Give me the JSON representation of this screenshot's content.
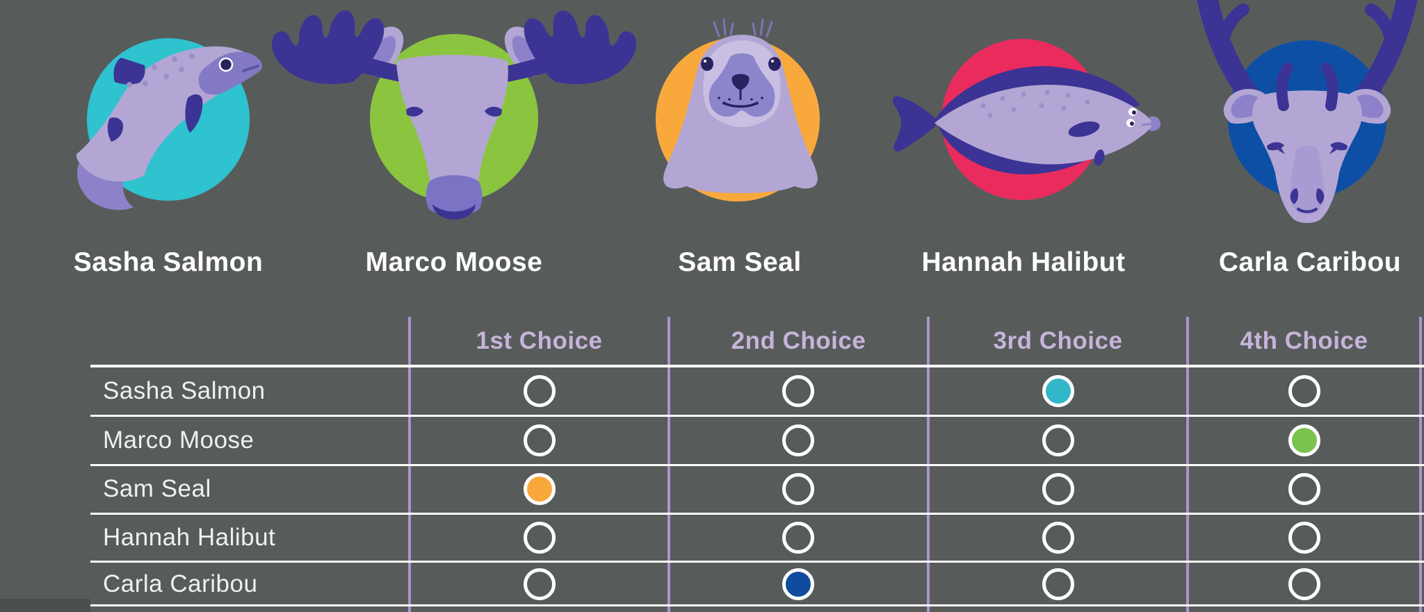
{
  "page": {
    "background_color": "#575c5b"
  },
  "characters": [
    {
      "name": "Sasha Salmon",
      "icon": "salmon-icon",
      "circle_color": "#2fc2cf"
    },
    {
      "name": "Marco Moose",
      "icon": "moose-icon",
      "circle_color": "#8bc540"
    },
    {
      "name": "Sam Seal",
      "icon": "seal-icon",
      "circle_color": "#f9a93c"
    },
    {
      "name": "Hannah Halibut",
      "icon": "halibut-icon",
      "circle_color": "#ea2b5d"
    },
    {
      "name": "Carla Caribou",
      "icon": "caribou-icon",
      "circle_color": "#0d4fa5"
    }
  ],
  "ballot": {
    "columns": [
      "1st Choice",
      "2nd Choice",
      "3rd Choice",
      "4th Choice"
    ],
    "rows": [
      {
        "label": "Sasha Salmon",
        "selections": [
          null,
          null,
          "teal",
          null
        ]
      },
      {
        "label": "Marco Moose",
        "selections": [
          null,
          null,
          null,
          "green"
        ]
      },
      {
        "label": "Sam Seal",
        "selections": [
          "orange",
          null,
          null,
          null
        ]
      },
      {
        "label": "Hannah Halibut",
        "selections": [
          null,
          null,
          null,
          null
        ]
      },
      {
        "label": "Carla Caribou",
        "selections": [
          null,
          "blue",
          null,
          null
        ]
      }
    ],
    "header_text_color": "#c6b4da",
    "divider_color": "#ad93cc",
    "grid_line_color": "#ffffff"
  },
  "colors": {
    "teal": "#31b7c8",
    "green": "#7cc34e",
    "orange": "#f9a83a",
    "blue": "#0f4c9f",
    "lavender": "#b3a6d4",
    "indigo": "#3b3494"
  }
}
